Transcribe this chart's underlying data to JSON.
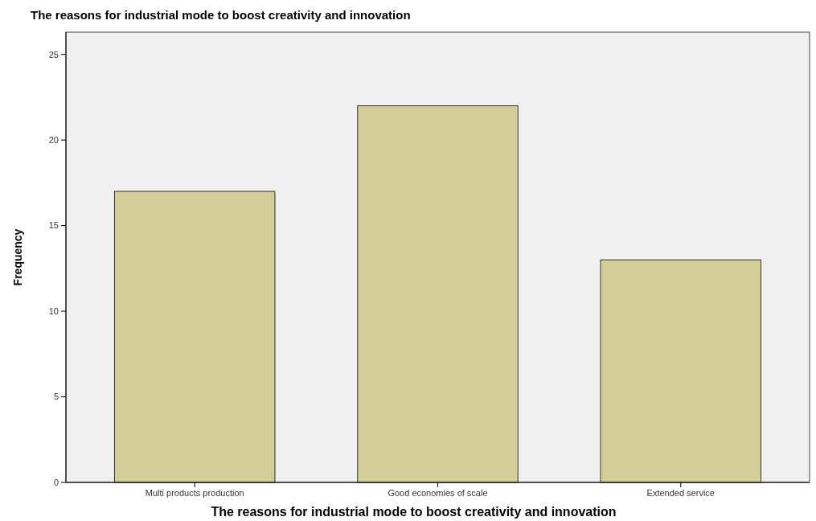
{
  "chart_data": {
    "type": "bar",
    "title": "The reasons for industrial mode to boost creativity and innovation",
    "xlabel": "The reasons for industrial mode to boost creativity and innovation",
    "ylabel": "Frequency",
    "categories": [
      "Multi products production",
      "Good economies of scale",
      "Extended service"
    ],
    "values": [
      17,
      22,
      13
    ],
    "color": "#d3ce97",
    "ylim": [
      0,
      26.3
    ],
    "yticks": [
      0,
      5,
      10,
      15,
      20,
      25
    ],
    "grid": false
  }
}
